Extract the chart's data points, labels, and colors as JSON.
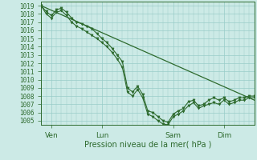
{
  "background_color": "#cceae6",
  "grid_color": "#99ccc8",
  "line_color": "#2d6a2d",
  "marker_color": "#2d6a2d",
  "xlabel": "Pression niveau de la mer( hPa )",
  "ylim": [
    1004.5,
    1019.5
  ],
  "yticks": [
    1005,
    1006,
    1007,
    1008,
    1009,
    1010,
    1011,
    1012,
    1013,
    1014,
    1015,
    1016,
    1017,
    1018,
    1019
  ],
  "xtick_labels": [
    "Ven",
    "Lun",
    "Sam",
    "Dim"
  ],
  "xtick_positions": [
    12,
    72,
    156,
    216
  ],
  "xlim": [
    0,
    252
  ],
  "x_series": [
    0,
    6,
    12,
    18,
    24,
    30,
    36,
    42,
    48,
    54,
    60,
    66,
    72,
    78,
    84,
    90,
    96,
    102,
    108,
    114,
    120,
    126,
    132,
    138,
    144,
    150,
    156,
    162,
    168,
    174,
    180,
    186,
    192,
    198,
    204,
    210,
    216,
    222,
    228,
    234,
    240,
    246,
    252
  ],
  "values1": [
    1019.0,
    1018.3,
    1017.8,
    1018.5,
    1018.7,
    1018.2,
    1017.5,
    1017.0,
    1016.8,
    1016.5,
    1016.2,
    1015.6,
    1015.0,
    1014.5,
    1013.8,
    1013.0,
    1012.2,
    1009.0,
    1008.5,
    1009.2,
    1008.2,
    1006.2,
    1006.0,
    1005.5,
    1005.0,
    1004.8,
    1005.8,
    1006.2,
    1006.5,
    1007.3,
    1007.5,
    1006.8,
    1007.0,
    1007.5,
    1007.8,
    1007.5,
    1007.8,
    1007.3,
    1007.5,
    1007.8,
    1007.8,
    1008.0,
    1008.0
  ],
  "values2": [
    1019.0,
    1018.0,
    1017.5,
    1018.2,
    1018.4,
    1017.8,
    1017.0,
    1016.5,
    1016.2,
    1015.8,
    1015.4,
    1015.0,
    1014.5,
    1014.0,
    1013.3,
    1012.5,
    1011.5,
    1008.5,
    1008.0,
    1008.8,
    1007.8,
    1005.8,
    1005.5,
    1005.0,
    1004.6,
    1004.5,
    1005.5,
    1005.8,
    1006.2,
    1006.8,
    1007.2,
    1006.5,
    1006.8,
    1007.0,
    1007.2,
    1007.0,
    1007.5,
    1007.0,
    1007.2,
    1007.5,
    1007.5,
    1007.8,
    1007.8
  ],
  "trend_x": [
    0,
    252
  ],
  "trend_y": [
    1019.0,
    1007.5
  ]
}
